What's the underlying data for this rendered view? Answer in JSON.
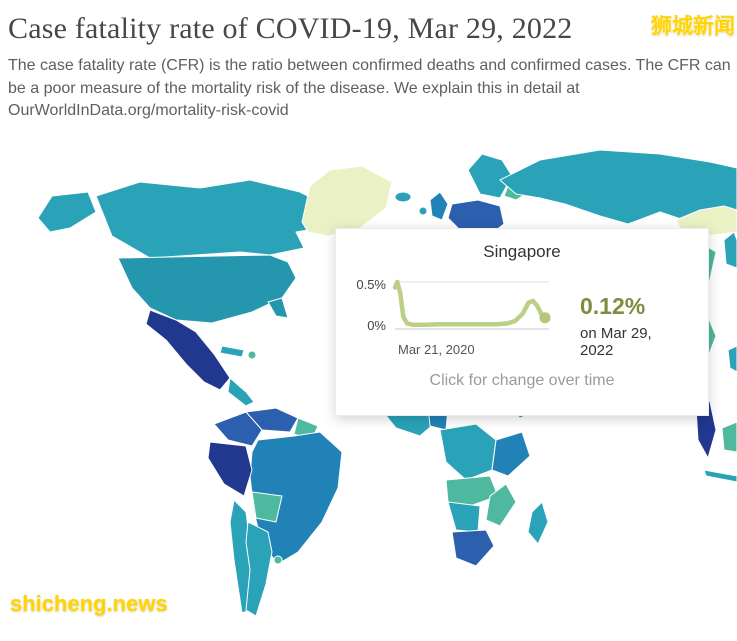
{
  "header": {
    "title": "Case fatality rate of COVID-19, Mar 29, 2022",
    "subtitle_lines": [
      "The case fatality rate (CFR) is the ratio between confirmed deaths and confirmed cases. The CFR can",
      "be a poor measure of the mortality risk of the disease. We explain this in detail at",
      "OurWorldInData.org/mortality-risk-covid"
    ]
  },
  "watermarks": {
    "top_right": "狮城新闻",
    "bottom_left": "shicheng.news"
  },
  "tooltip": {
    "country": "Singapore",
    "value": "0.12%",
    "value_date": "on Mar 29, 2022",
    "x_start_label": "Mar 21, 2020",
    "y_top_label": "0.5%",
    "y_bottom_label": "0%",
    "footer": "Click for change over time"
  },
  "chart_data": {
    "type": "line",
    "title": "Singapore",
    "ylabel": "Case fatality rate",
    "ylim": [
      0,
      0.5
    ],
    "y_tick_labels": [
      "0%",
      "0.5%"
    ],
    "x_start_label": "Mar 21, 2020",
    "x_end_label": "Mar 29, 2022",
    "end_value": 0.12,
    "end_value_label": "0.12%",
    "points": [
      [
        0,
        0.44
      ],
      [
        0.015,
        0.5
      ],
      [
        0.035,
        0.38
      ],
      [
        0.055,
        0.13
      ],
      [
        0.08,
        0.06
      ],
      [
        0.12,
        0.045
      ],
      [
        0.2,
        0.045
      ],
      [
        0.3,
        0.05
      ],
      [
        0.4,
        0.05
      ],
      [
        0.5,
        0.05
      ],
      [
        0.6,
        0.05
      ],
      [
        0.68,
        0.05
      ],
      [
        0.75,
        0.06
      ],
      [
        0.8,
        0.085
      ],
      [
        0.85,
        0.16
      ],
      [
        0.89,
        0.28
      ],
      [
        0.92,
        0.3
      ],
      [
        0.95,
        0.24
      ],
      [
        0.975,
        0.16
      ],
      [
        1,
        0.12
      ]
    ]
  },
  "colors": {
    "accent_olive": "#7d8d3e",
    "sparkline_line": "#bccf86",
    "sparkline_dot": "#b3c877",
    "watermark_yellow": "#ffd400",
    "map_palette": {
      "no_data": "#ffffff",
      "lightest": "#e9f1c5",
      "light_green": "#9fd6a9",
      "green": "#4fb99f",
      "teal": "#2aa3b8",
      "teal_dark": "#2496ae",
      "blue": "#2182b8",
      "dark_blue": "#2c5fae",
      "navy": "#22388f"
    }
  }
}
